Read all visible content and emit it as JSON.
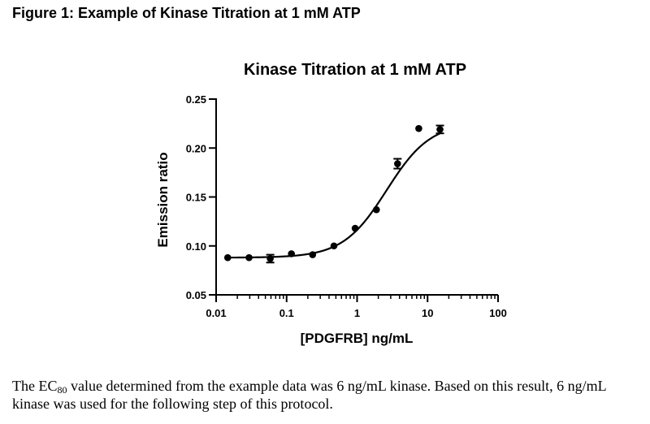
{
  "figure_caption": "Figure 1: Example of Kinase Titration at 1 mM ATP",
  "body": {
    "text_before": "The EC",
    "subscript": "80",
    "text_after": " value determined from the example data was 6 ng/mL kinase.  Based on this result, 6 ng/mL kinase was used for the following step of this protocol."
  },
  "chart_data": {
    "type": "scatter",
    "title": "Kinase Titration at 1 mM ATP",
    "xlabel": "[PDGFRB] ng/mL",
    "ylabel": "Emission ratio",
    "x_scale": "log",
    "xlim": [
      0.01,
      100
    ],
    "ylim": [
      0.05,
      0.25
    ],
    "x_ticks": [
      0.01,
      0.1,
      1,
      10,
      100
    ],
    "x_tick_labels": [
      "0.01",
      "0.1",
      "1",
      "10",
      "100"
    ],
    "y_ticks": [
      0.05,
      0.1,
      0.15,
      0.2,
      0.25
    ],
    "y_tick_labels": [
      "0.05",
      "0.10",
      "0.15",
      "0.20",
      "0.25"
    ],
    "grid": false,
    "legend": "none",
    "points": [
      {
        "x": 0.0146,
        "y": 0.088,
        "err": 0
      },
      {
        "x": 0.0293,
        "y": 0.088,
        "err": 0
      },
      {
        "x": 0.0586,
        "y": 0.087,
        "err": 0.004
      },
      {
        "x": 0.117,
        "y": 0.092,
        "err": 0
      },
      {
        "x": 0.234,
        "y": 0.091,
        "err": 0
      },
      {
        "x": 0.469,
        "y": 0.1,
        "err": 0
      },
      {
        "x": 0.938,
        "y": 0.118,
        "err": 0
      },
      {
        "x": 1.88,
        "y": 0.137,
        "err": 0
      },
      {
        "x": 3.75,
        "y": 0.184,
        "err": 0.005
      },
      {
        "x": 7.5,
        "y": 0.22,
        "err": 0
      },
      {
        "x": 15,
        "y": 0.219,
        "err": 0.004
      }
    ],
    "fit": {
      "model": "sigmoidal dose-response",
      "bottom": 0.088,
      "top": 0.226,
      "log_ec50": 0.42,
      "hill": 1.4
    }
  }
}
